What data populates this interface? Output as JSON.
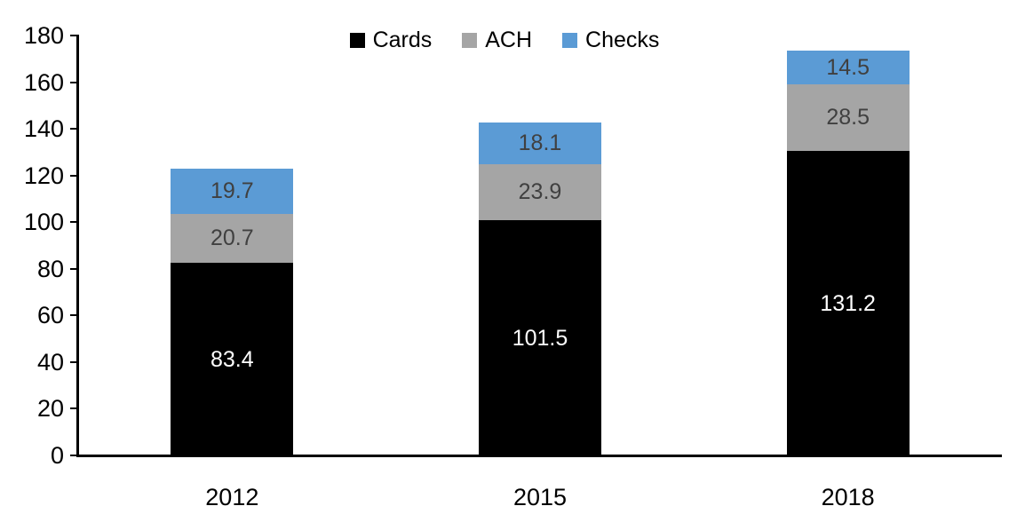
{
  "chart_data": {
    "type": "bar",
    "stacked": true,
    "title": "",
    "categories": [
      "2012",
      "2015",
      "2018"
    ],
    "series": [
      {
        "name": "Cards",
        "color": "#000000",
        "label_color": "#FFFFFF",
        "values": [
          83.4,
          101.5,
          131.2
        ]
      },
      {
        "name": "ACH",
        "color": "#A5A5A5",
        "label_color": "#404040",
        "values": [
          20.7,
          23.9,
          28.5
        ]
      },
      {
        "name": "Checks",
        "color": "#5B9BD5",
        "label_color": "#404040",
        "values": [
          19.7,
          18.1,
          14.5
        ]
      }
    ],
    "ylim": [
      0,
      180
    ],
    "ytick_step": 20,
    "ytick_labels": [
      "0",
      "20",
      "40",
      "60",
      "80",
      "100",
      "120",
      "140",
      "160",
      "180"
    ],
    "xlabel": "",
    "ylabel": "",
    "grid": false,
    "legend": {
      "position": "top",
      "entries": [
        "Cards",
        "ACH",
        "Checks"
      ]
    },
    "axis_color": "#000000",
    "background": "#FFFFFF",
    "data_labels_visible": true
  }
}
